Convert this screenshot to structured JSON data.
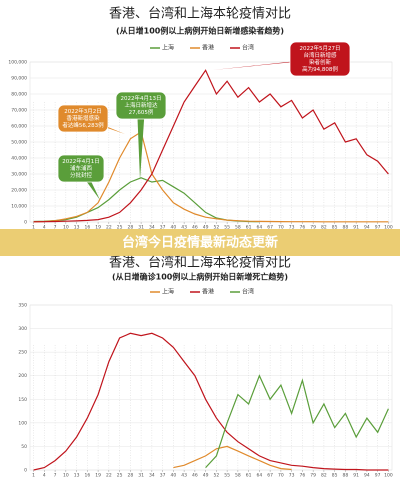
{
  "banner": "台湾今日疫情最新动态更新",
  "chart_data": [
    {
      "type": "line",
      "title": "香港、台湾和上海本轮疫情对比",
      "subtitle": "(从日增100例以上病例开始日新增感染者趋势)",
      "x": [
        1,
        4,
        7,
        10,
        13,
        16,
        19,
        22,
        25,
        28,
        31,
        34,
        37,
        40,
        43,
        46,
        49,
        52,
        55,
        58,
        61,
        64,
        67,
        70,
        73,
        76,
        79,
        82,
        85,
        88,
        91,
        94,
        97,
        100
      ],
      "xlim": [
        0,
        101
      ],
      "xticks": [
        1,
        4,
        7,
        10,
        13,
        16,
        19,
        22,
        25,
        28,
        31,
        34,
        37,
        40,
        43,
        46,
        49,
        52,
        55,
        58,
        61,
        64,
        67,
        70,
        73,
        76,
        79,
        82,
        85,
        88,
        91,
        94,
        97,
        100
      ],
      "ylim": [
        0,
        100000
      ],
      "yticks": [
        0,
        {
          "value": 10000,
          "label": "10,000"
        },
        {
          "value": 20000,
          "label": "20,000"
        },
        {
          "value": 30000,
          "label": "30,000"
        },
        {
          "value": 40000,
          "label": "40,000"
        },
        {
          "value": 50000,
          "label": "50,000"
        },
        {
          "value": 60000,
          "label": "60,000"
        },
        {
          "value": 70000,
          "label": "70,000"
        },
        {
          "value": 80000,
          "label": "80,000"
        },
        {
          "value": 90000,
          "label": "90,000"
        },
        {
          "value": 100000,
          "label": "100,000"
        }
      ],
      "grid": true,
      "series": [
        {
          "name": "上海",
          "color": "#5a9e3a",
          "values": [
            300,
            500,
            900,
            1500,
            3000,
            6000,
            9000,
            14000,
            20000,
            25000,
            27605,
            25000,
            26000,
            22000,
            18000,
            12000,
            6000,
            2500,
            1200,
            600,
            300,
            200,
            null,
            null,
            null,
            null,
            null,
            null,
            null,
            null,
            null,
            null,
            null,
            null
          ]
        },
        {
          "name": "香港",
          "color": "#e08a2c",
          "values": [
            100,
            300,
            800,
            2000,
            3500,
            6000,
            12000,
            25000,
            40000,
            52000,
            56283,
            30000,
            20000,
            12000,
            8000,
            5000,
            3000,
            2000,
            1200,
            800,
            500,
            400,
            300,
            250,
            200,
            200,
            200,
            150,
            150,
            100,
            100,
            100,
            100,
            100
          ]
        },
        {
          "name": "台湾",
          "color": "#c0141c",
          "values": [
            100,
            200,
            300,
            500,
            700,
            1000,
            1500,
            3000,
            6000,
            12000,
            20000,
            30000,
            45000,
            60000,
            75000,
            85000,
            94808,
            80000,
            88000,
            78000,
            84000,
            75000,
            80000,
            72000,
            76000,
            65000,
            70000,
            58000,
            62000,
            50000,
            52000,
            42000,
            38000,
            30000
          ]
        }
      ],
      "annotations": [
        {
          "color": "#e08a2c",
          "lines": [
            "2022年3月2日",
            "香港新增感染",
            "者达峰56,283例"
          ]
        },
        {
          "color": "#5a9e3a",
          "lines": [
            "2022年4月13日",
            "上海日新增达",
            "27,605例"
          ]
        },
        {
          "color": "#5a9e3a",
          "lines": [
            "2022年4月1日",
            "浦东浦西",
            "分批封控"
          ]
        },
        {
          "color": "#c0141c",
          "lines": [
            "2022年5月27日",
            "台湾日新增感",
            "染者创新",
            "高为94,808例"
          ]
        }
      ]
    },
    {
      "type": "line",
      "title": "香港、台湾和上海本轮疫情对比",
      "subtitle": "(从日增确诊100例以上病例开始日新增死亡趋势)",
      "x": [
        1,
        4,
        7,
        10,
        13,
        16,
        19,
        22,
        25,
        28,
        31,
        34,
        37,
        40,
        43,
        46,
        49,
        52,
        55,
        58,
        61,
        64,
        67,
        70,
        73,
        76,
        79,
        82,
        85,
        88,
        91,
        94,
        97,
        100
      ],
      "xlim": [
        0,
        101
      ],
      "xticks": [
        1,
        4,
        7,
        10,
        13,
        16,
        19,
        22,
        25,
        28,
        31,
        34,
        37,
        40,
        43,
        46,
        49,
        52,
        55,
        58,
        61,
        64,
        67,
        70,
        73,
        76,
        79,
        82,
        85,
        88,
        91,
        94,
        97,
        100
      ],
      "ylim": [
        0,
        350
      ],
      "yticks": [
        0,
        50,
        100,
        150,
        200,
        250,
        300,
        350
      ],
      "grid": true,
      "series": [
        {
          "name": "上海",
          "color": "#e08a2c",
          "values": [
            null,
            null,
            null,
            null,
            null,
            null,
            null,
            null,
            null,
            null,
            null,
            null,
            null,
            5,
            10,
            20,
            30,
            45,
            50,
            40,
            30,
            20,
            10,
            3,
            1,
            null,
            null,
            null,
            null,
            null,
            null,
            null,
            null,
            null
          ]
        },
        {
          "name": "香港",
          "color": "#c0141c",
          "values": [
            0,
            5,
            20,
            40,
            70,
            110,
            160,
            230,
            280,
            290,
            285,
            290,
            280,
            260,
            230,
            200,
            150,
            110,
            80,
            60,
            45,
            30,
            20,
            15,
            10,
            8,
            5,
            3,
            2,
            1,
            1,
            0,
            0,
            0
          ]
        },
        {
          "name": "台湾",
          "color": "#5a9e3a",
          "values": [
            null,
            null,
            null,
            null,
            null,
            null,
            null,
            null,
            null,
            null,
            null,
            null,
            null,
            null,
            null,
            null,
            5,
            30,
            100,
            160,
            140,
            200,
            150,
            180,
            120,
            190,
            100,
            140,
            90,
            120,
            70,
            110,
            80,
            130
          ]
        }
      ]
    }
  ]
}
